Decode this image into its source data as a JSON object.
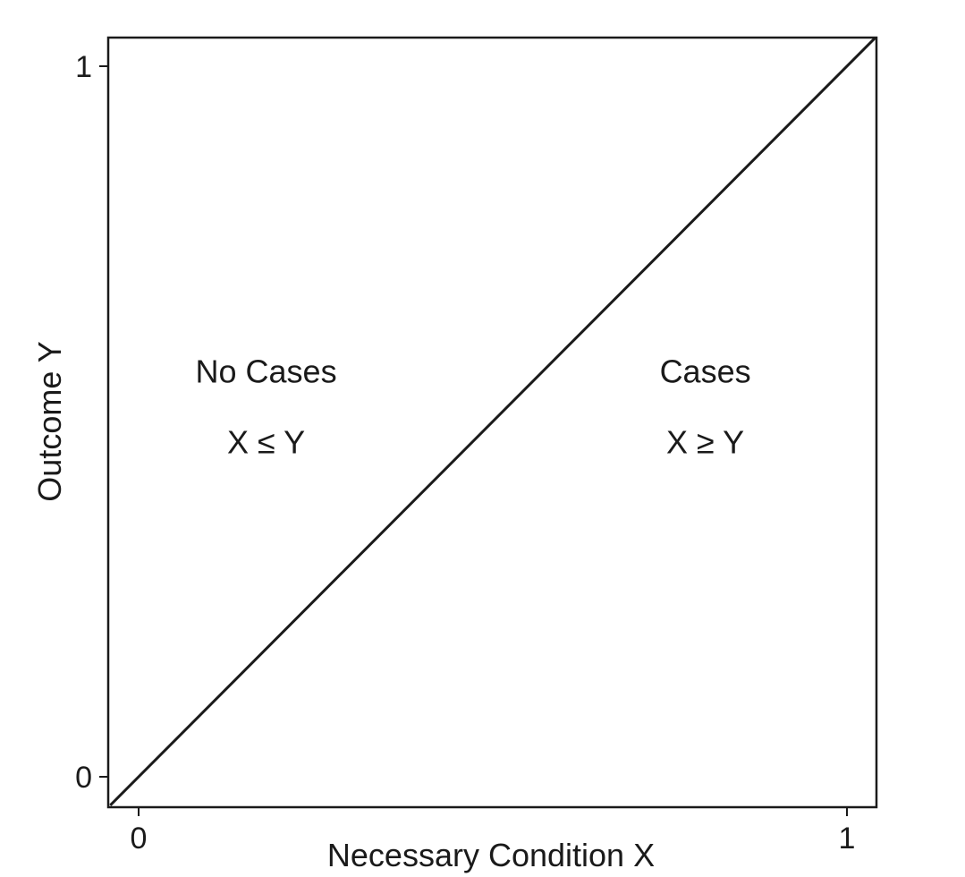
{
  "chart_data": {
    "type": "line",
    "title": "",
    "xlabel": "Necessary Condition X",
    "ylabel": "Outcome Y",
    "xlim": [
      0,
      1
    ],
    "ylim": [
      0,
      1
    ],
    "x_ticks": [
      {
        "value": 0,
        "label": "0"
      },
      {
        "value": 1,
        "label": "1"
      }
    ],
    "y_ticks": [
      {
        "value": 0,
        "label": "0"
      },
      {
        "value": 1,
        "label": "1"
      }
    ],
    "grid": false,
    "legend": "none",
    "series": [
      {
        "x": [
          -0.04,
          1.04
        ],
        "y": [
          -0.04,
          1.04
        ],
        "color": "#1a1a1a"
      }
    ],
    "annotations": [
      {
        "text": "No Cases",
        "x": 0.18,
        "y": 0.555
      },
      {
        "text": "X ≤ Y",
        "x": 0.18,
        "y": 0.455
      },
      {
        "text": "Cases",
        "x": 0.8,
        "y": 0.555
      },
      {
        "text": "X ≥ Y",
        "x": 0.8,
        "y": 0.455
      }
    ]
  }
}
